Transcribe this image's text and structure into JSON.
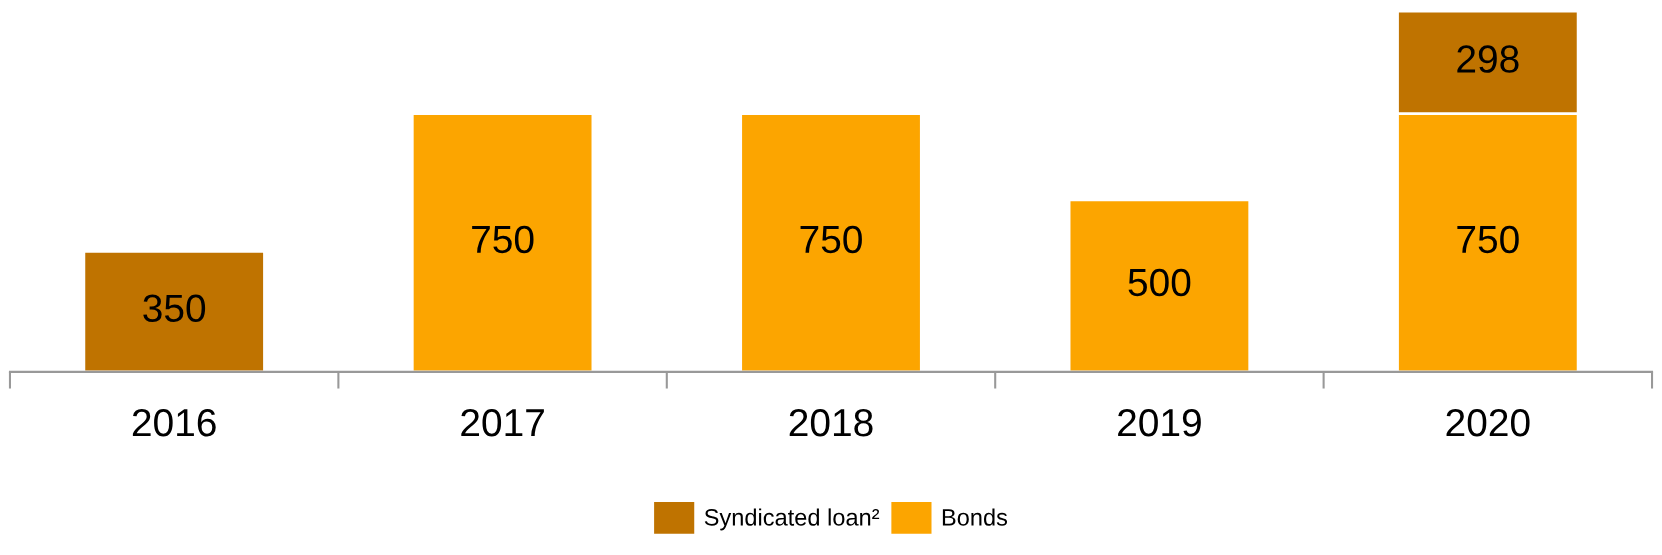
{
  "chart_data": {
    "type": "bar",
    "stacked": true,
    "data_labels": true,
    "legend": "bottom",
    "categories": [
      "2016",
      "2017",
      "2018",
      "2019",
      "2020"
    ],
    "series": [
      {
        "name": "Bonds",
        "color": "#fca500",
        "values": [
          null,
          750,
          750,
          500,
          750
        ]
      },
      {
        "name": "Syndicated loan²",
        "color": "#bf7300",
        "values": [
          350,
          null,
          null,
          null,
          298
        ]
      }
    ]
  }
}
